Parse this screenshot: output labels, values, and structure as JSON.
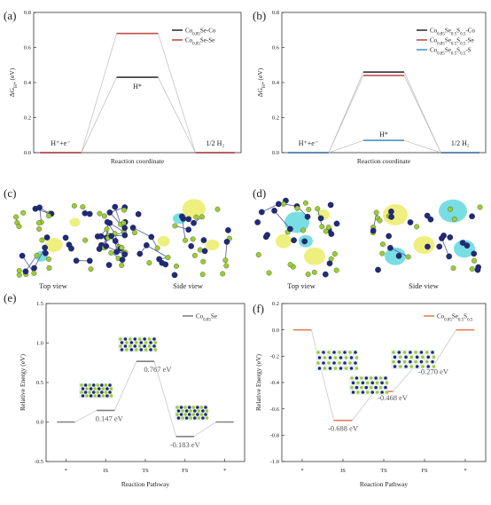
{
  "panels": {
    "a": "(a)",
    "b": "(b)",
    "c": "(c)",
    "d": "(d)",
    "e": "(e)",
    "f": "(f)"
  },
  "structure_views": {
    "c": {
      "top": "Top view",
      "side": "Side view"
    },
    "d": {
      "top": "Top view",
      "side": "Side view"
    }
  },
  "colors": {
    "black": "#333333",
    "red": "#c0504d",
    "blue": "#4f94c8",
    "gray": "#808080",
    "salmon": "#e08060",
    "atom_navy": "#1f2a7a",
    "atom_lime": "#9acd32",
    "charge_yellow": "#e8e84a",
    "charge_cyan": "#40d0d8"
  },
  "chart_data": [
    {
      "id": "a",
      "type": "line",
      "ylabel": "ΔG_H* (eV)",
      "xlabel": "Reaction coordinate",
      "ylim": [
        0,
        0.8
      ],
      "yticks": [
        "0.0",
        "0.2",
        "0.4",
        "0.6",
        "0.8"
      ],
      "stage_labels": [
        "H⁺+e⁻",
        "H*",
        "1/2 H₂"
      ],
      "series": [
        {
          "name": "Co0.85Se-Co",
          "values": [
            0,
            0.43,
            0
          ],
          "color": "#333333"
        },
        {
          "name": "Co0.85Se-Se",
          "values": [
            0,
            0.68,
            0
          ],
          "color": "#c0504d"
        }
      ],
      "legend": "top-right"
    },
    {
      "id": "b",
      "type": "line",
      "ylabel": "ΔG_H* (eV)",
      "xlabel": "Reaction coordinate",
      "ylim": [
        0,
        0.8
      ],
      "yticks": [
        "0.0",
        "0.2",
        "0.4",
        "0.6",
        "0.8"
      ],
      "stage_labels": [
        "H⁺+e⁻",
        "H*",
        "1/2 H₂"
      ],
      "series": [
        {
          "name": "Co0.85Se0.5S0.5-Co",
          "values": [
            0,
            0.46,
            0
          ],
          "color": "#333333"
        },
        {
          "name": "Co0.85Se0.5S0.5-Se",
          "values": [
            0,
            0.44,
            0
          ],
          "color": "#c0504d"
        },
        {
          "name": "Co0.85Se0.5S0.5-S",
          "values": [
            0,
            0.07,
            0
          ],
          "color": "#4f94c8"
        }
      ],
      "legend": "top-right"
    },
    {
      "id": "e",
      "type": "line",
      "ylabel": "Relative Energy (eV)",
      "xlabel": "Reaction Pathway",
      "ylim": [
        -0.5,
        1.5
      ],
      "yticks": [
        "-0.5",
        "0.0",
        "0.5",
        "1.0",
        "1.5"
      ],
      "categories": [
        "*",
        "IS",
        "TS",
        "FS",
        "*"
      ],
      "series": [
        {
          "name": "Co0.85Se",
          "values": [
            0,
            0.147,
            0.767,
            -0.183,
            0
          ],
          "color": "#808080"
        }
      ],
      "annotations": [
        "0.147 eV",
        "0.767 eV",
        "-0.183 eV"
      ],
      "legend": "top-right"
    },
    {
      "id": "f",
      "type": "line",
      "ylabel": "Relative Energy (eV)",
      "xlabel": "Reaction Pathway",
      "ylim": [
        -1.0,
        0.2
      ],
      "yticks": [
        "-1.0",
        "-0.8",
        "-0.6",
        "-0.4",
        "-0.2",
        "0.0",
        "0.2"
      ],
      "categories": [
        "*",
        "IS",
        "TS",
        "FS",
        "*"
      ],
      "series": [
        {
          "name": "Co0.85Se0.5S0.5",
          "values": [
            0,
            -0.688,
            -0.468,
            -0.27,
            0
          ],
          "color": "#e08060"
        }
      ],
      "annotations": [
        "-0.688 eV",
        "-0.468 eV",
        "-0.270 eV"
      ],
      "legend": "top-right"
    }
  ]
}
